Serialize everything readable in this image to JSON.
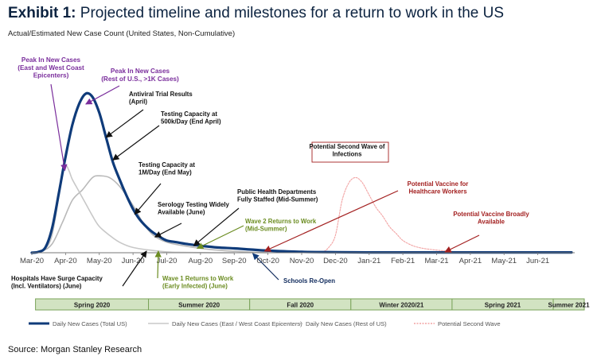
{
  "header": {
    "exhibit_label": "Exhibit 1:",
    "title": "Projected timeline and milestones for a return to work in the US",
    "subtitle": "Actual/Estimated New Case Count (United States, Non-Cumulative)"
  },
  "footer": {
    "source": "Source: Morgan Stanley Research"
  },
  "chart_data": {
    "type": "line",
    "title": "Projected timeline and milestones for a return to work in the US",
    "ylabel": "Actual/Estimated New Case Count (United States, Non-Cumulative)",
    "x_tick_labels": [
      "Mar-20",
      "Apr-20",
      "May-20",
      "Jun-20",
      "Jul-20",
      "Aug-20",
      "Sep-20",
      "Oct-20",
      "Nov-20",
      "Dec-20",
      "Jan-21",
      "Feb-21",
      "Mar-21",
      "Apr-21",
      "May-21",
      "Jun-21"
    ],
    "x_range_months": [
      0,
      16
    ],
    "y_range_relative": [
      0,
      100
    ],
    "legend_position": "bottom",
    "colors": {
      "total": "#0f3b7a",
      "east_west": "#c8c8c8",
      "rest": "#b9b9b9",
      "second_wave": "#f2a3a3",
      "purple": "#7a2e9c",
      "dark_red": "#a32020",
      "green": "#6b8c21",
      "season_fill": "#d2e3c2",
      "season_border": "#7aa35a"
    },
    "series": [
      {
        "name": "Daily New Cases (Total US)",
        "key": "total",
        "x": [
          0,
          0.2,
          0.4,
          0.6,
          0.8,
          1.0,
          1.2,
          1.4,
          1.6,
          1.8,
          2.0,
          2.2,
          2.4,
          2.6,
          2.8,
          3.0,
          3.2,
          3.5,
          3.8,
          4.0,
          4.3,
          4.6,
          5.0,
          5.5,
          6.0,
          6.5,
          7.0,
          8.0,
          9.0,
          10.0,
          11.0,
          12.0,
          13.0,
          14.0,
          15.0,
          16.0
        ],
        "y": [
          0,
          0.5,
          3,
          14,
          34,
          55,
          73,
          85,
          91,
          89,
          80,
          66,
          52,
          42,
          33,
          25,
          19,
          13,
          9,
          7,
          6,
          5,
          4,
          3,
          2.5,
          1.8,
          1.2,
          0.5,
          0.3,
          0.2,
          0.2,
          0.2,
          0.2,
          0.2,
          0.2,
          0.2
        ]
      },
      {
        "name": "Daily New Cases (East / West Coast Epicenters)",
        "key": "east_west",
        "x": [
          0,
          0.3,
          0.6,
          0.9,
          1.0,
          1.1,
          1.2,
          1.4,
          1.6,
          1.8,
          2.0,
          2.3,
          2.6,
          3.0,
          3.5,
          4.0,
          4.5,
          5.0,
          5.5,
          6.0
        ],
        "y": [
          0,
          1,
          10,
          45,
          50,
          47,
          42,
          35,
          28,
          21,
          15,
          10,
          6,
          3,
          1.5,
          0.5,
          0.2,
          0.1,
          0,
          0
        ]
      },
      {
        "name": "Daily New Cases (Rest of US)",
        "key": "rest",
        "x": [
          0,
          0.3,
          0.6,
          0.9,
          1.2,
          1.5,
          1.8,
          2.0,
          2.3,
          2.6,
          3.0,
          3.3,
          3.6,
          4.0,
          4.5,
          5.0,
          5.5,
          6.0,
          6.5,
          7.0
        ],
        "y": [
          0,
          1,
          5,
          17,
          30,
          36,
          43,
          44,
          43,
          38,
          27,
          17,
          10,
          6,
          4,
          2.5,
          1.5,
          0.8,
          0.3,
          0
        ]
      },
      {
        "name": "Potential Second Wave",
        "key": "second_wave",
        "x": [
          8.6,
          8.8,
          9.0,
          9.2,
          9.4,
          9.6,
          9.8,
          10.0,
          10.2,
          10.4,
          10.6,
          10.8,
          11.0,
          11.3,
          11.6,
          12.0,
          12.3,
          12.6,
          13.0,
          13.5
        ],
        "y": [
          0,
          3,
          10,
          30,
          40,
          43,
          40,
          33,
          26,
          21,
          15,
          11,
          7,
          4,
          2.5,
          1.5,
          1,
          0.5,
          0,
          0
        ]
      }
    ],
    "annotations": [
      {
        "key": "peak_east",
        "lines": [
          "Peak In New Cases",
          "(East and West Coast",
          "Epicenters)"
        ],
        "color": "purple"
      },
      {
        "key": "peak_rest",
        "lines": [
          "Peak In New Cases",
          "(Rest of U.S., >1K Cases)"
        ],
        "color": "purple"
      },
      {
        "key": "antiviral",
        "lines": [
          "Antiviral  Trial Results",
          "(April)"
        ],
        "color": "black"
      },
      {
        "key": "testing_500k",
        "lines": [
          "Testing Capacity at",
          "500k/Day (End April)"
        ],
        "color": "black"
      },
      {
        "key": "testing_1m",
        "lines": [
          "Testing Capacity at",
          "1M/Day (End May)"
        ],
        "color": "black"
      },
      {
        "key": "serology",
        "lines": [
          "Serology Testing Widely",
          "Available (June)"
        ],
        "color": "black"
      },
      {
        "key": "public_health",
        "lines": [
          "Public Health Departments",
          "Fully Staffed (Mid-Summer)"
        ],
        "color": "black"
      },
      {
        "key": "wave2",
        "lines": [
          "Wave 2 Returns to Work",
          "(Mid-Summer)"
        ],
        "color": "green"
      },
      {
        "key": "hospitals",
        "lines": [
          "Hospitals Have Surge Capacity",
          "(Incl. Ventilators) (June)"
        ],
        "color": "black"
      },
      {
        "key": "wave1",
        "lines": [
          "Wave 1 Returns to Work",
          "(Early Infected) (June)"
        ],
        "color": "green"
      },
      {
        "key": "schools",
        "lines": [
          "Schools Re-Open"
        ],
        "color": "navy"
      },
      {
        "key": "second_wave_box",
        "lines": [
          "Potential Second Wave of",
          "Infections"
        ],
        "color": "black"
      },
      {
        "key": "vaccine_hc",
        "lines": [
          "Potential Vaccine for",
          "Healthcare Workers"
        ],
        "color": "dark_red"
      },
      {
        "key": "vaccine_broad",
        "lines": [
          "Potential Vaccine Broadly",
          "Available"
        ],
        "color": "dark_red"
      }
    ],
    "seasons": [
      "Spring 2020",
      "Summer 2020",
      "Fall 2020",
      "Winter 2020/21",
      "Spring 2021",
      "Summer 2021"
    ]
  }
}
